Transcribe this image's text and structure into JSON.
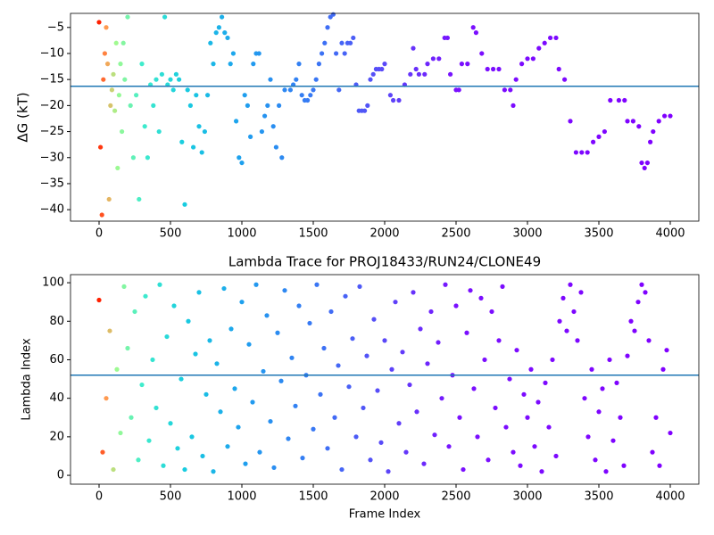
{
  "chart_data": [
    {
      "type": "scatter",
      "ylabel": "ΔG (kT)",
      "xlim": [
        -200,
        4200
      ],
      "ylim": [
        -42.2,
        -2.3
      ],
      "xticks": [
        0,
        500,
        1000,
        1500,
        2000,
        2500,
        3000,
        3500,
        4000
      ],
      "yticks": [
        {
          "value": -5,
          "label": "−5"
        },
        {
          "value": -10,
          "label": "−10"
        },
        {
          "value": -15,
          "label": "−15"
        },
        {
          "value": -20,
          "label": "−20"
        },
        {
          "value": -25,
          "label": "−25"
        },
        {
          "value": -30,
          "label": "−30"
        },
        {
          "value": -35,
          "label": "−35"
        },
        {
          "value": -40,
          "label": "−40"
        }
      ],
      "hline": -16.3,
      "hline_color": "#1f77b4",
      "colormap": [
        {
          "value": 0,
          "color": "#ff2000"
        },
        {
          "value": 50,
          "color": "#ff9a50"
        },
        {
          "value": 120,
          "color": "#a0fa90"
        },
        {
          "value": 300,
          "color": "#40eccc"
        },
        {
          "value": 600,
          "color": "#18cce0"
        },
        {
          "value": 1000,
          "color": "#1ea0ee"
        },
        {
          "value": 1500,
          "color": "#3878f4"
        },
        {
          "value": 2000,
          "color": "#5a48f8"
        },
        {
          "value": 2500,
          "color": "#7a10ff"
        },
        {
          "value": 4000,
          "color": "#8000ff"
        }
      ],
      "x": [
        0,
        10,
        20,
        30,
        40,
        50,
        60,
        70,
        80,
        90,
        100,
        110,
        120,
        130,
        140,
        150,
        160,
        170,
        180,
        200,
        220,
        240,
        260,
        280,
        300,
        320,
        340,
        360,
        380,
        400,
        420,
        440,
        460,
        480,
        500,
        520,
        540,
        560,
        580,
        600,
        620,
        640,
        660,
        680,
        700,
        720,
        740,
        760,
        780,
        800,
        820,
        840,
        860,
        880,
        900,
        920,
        940,
        960,
        980,
        1000,
        1020,
        1040,
        1060,
        1080,
        1100,
        1120,
        1140,
        1160,
        1180,
        1200,
        1220,
        1240,
        1260,
        1280,
        1300,
        1340,
        1360,
        1380,
        1400,
        1420,
        1440,
        1460,
        1480,
        1500,
        1520,
        1540,
        1560,
        1580,
        1600,
        1620,
        1640,
        1660,
        1680,
        1700,
        1720,
        1740,
        1760,
        1780,
        1800,
        1820,
        1840,
        1860,
        1880,
        1900,
        1920,
        1940,
        1960,
        1980,
        2000,
        2040,
        2060,
        2100,
        2140,
        2180,
        2200,
        2220,
        2240,
        2280,
        2300,
        2340,
        2380,
        2420,
        2440,
        2460,
        2500,
        2520,
        2540,
        2580,
        2620,
        2640,
        2680,
        2720,
        2760,
        2800,
        2840,
        2880,
        2900,
        2920,
        2960,
        3000,
        3040,
        3080,
        3120,
        3160,
        3200,
        3220,
        3260,
        3300,
        3340,
        3380,
        3420,
        3460,
        3500,
        3540,
        3580,
        3640,
        3680,
        3700,
        3740,
        3780,
        3800,
        3820,
        3840,
        3860,
        3880,
        3920,
        3960,
        4000
      ],
      "y": [
        -4,
        -28,
        -41,
        -15,
        -10,
        -5,
        -12,
        -38,
        -20,
        -17,
        -14,
        -21,
        -8,
        -32,
        -18,
        -12,
        -25,
        -8,
        -15,
        -3,
        -20,
        -30,
        -18,
        -38,
        -12,
        -24,
        -30,
        -16,
        -20,
        -15,
        -25,
        -14,
        -3,
        -16,
        -15,
        -17,
        -14,
        -15,
        -27,
        -39,
        -17,
        -20,
        -28,
        -18,
        -24,
        -29,
        -25,
        -18,
        -8,
        -12,
        -6,
        -5,
        -3,
        -6,
        -7,
        -12,
        -10,
        -23,
        -30,
        -31,
        -18,
        -20,
        -26,
        -12,
        -10,
        -10,
        -25,
        -22,
        -20,
        -15,
        -24,
        -28,
        -20,
        -30,
        -17,
        -17,
        -16,
        -15,
        -12,
        -18,
        -19,
        -19,
        -18,
        -17,
        -15,
        -12,
        -10,
        -8,
        -5,
        -3,
        -2.5,
        -10,
        -17,
        -8,
        -10,
        -8,
        -8,
        -7,
        -16,
        -21,
        -21,
        -21,
        -20,
        -15,
        -14,
        -13,
        -13,
        -13,
        -12,
        -18,
        -19,
        -19,
        -16,
        -14,
        -9,
        -13,
        -14,
        -14,
        -12,
        -11,
        -11,
        -7,
        -7,
        -14,
        -17,
        -17,
        -12,
        -12,
        -5,
        -6,
        -10,
        -13,
        -13,
        -13,
        -17,
        -17,
        -20,
        -15,
        -12,
        -11,
        -11,
        -9,
        -8,
        -7,
        -7,
        -13,
        -15,
        -23,
        -29,
        -29,
        -29,
        -27,
        -26,
        -25,
        -19,
        -19,
        -19,
        -23,
        -23,
        -24,
        -31,
        -32,
        -31,
        -27,
        -25,
        -23,
        -22,
        -22
      ]
    },
    {
      "type": "scatter",
      "title": "Lambda Trace for PROJ18433/RUN24/CLONE49",
      "xlabel": "Frame Index",
      "ylabel": "Lambda Index",
      "xlim": [
        -200,
        4200
      ],
      "ylim": [
        -4.6,
        104.2
      ],
      "xticks": [
        0,
        500,
        1000,
        1500,
        2000,
        2500,
        3000,
        3500,
        4000
      ],
      "yticks": [
        0,
        20,
        40,
        60,
        80,
        100
      ],
      "hline": 52,
      "hline_color": "#1f77b4",
      "colormap": [
        {
          "value": 0,
          "color": "#ff2000"
        },
        {
          "value": 50,
          "color": "#ff9a50"
        },
        {
          "value": 120,
          "color": "#a0fa90"
        },
        {
          "value": 300,
          "color": "#40eccc"
        },
        {
          "value": 600,
          "color": "#18cce0"
        },
        {
          "value": 1000,
          "color": "#1ea0ee"
        },
        {
          "value": 1500,
          "color": "#3878f4"
        },
        {
          "value": 2000,
          "color": "#5a48f8"
        },
        {
          "value": 2500,
          "color": "#7a10ff"
        },
        {
          "value": 4000,
          "color": "#8000ff"
        }
      ],
      "x": [
        0,
        25,
        50,
        75,
        100,
        125,
        150,
        175,
        200,
        225,
        250,
        275,
        300,
        325,
        350,
        375,
        400,
        425,
        450,
        475,
        500,
        525,
        550,
        575,
        600,
        625,
        650,
        675,
        700,
        725,
        750,
        775,
        800,
        825,
        850,
        875,
        900,
        925,
        950,
        975,
        1000,
        1025,
        1050,
        1075,
        1100,
        1125,
        1150,
        1175,
        1200,
        1225,
        1250,
        1275,
        1300,
        1325,
        1350,
        1375,
        1400,
        1425,
        1450,
        1475,
        1500,
        1525,
        1550,
        1575,
        1600,
        1625,
        1650,
        1675,
        1700,
        1725,
        1750,
        1775,
        1800,
        1825,
        1850,
        1875,
        1900,
        1925,
        1950,
        1975,
        2000,
        2025,
        2050,
        2075,
        2100,
        2125,
        2150,
        2175,
        2200,
        2225,
        2250,
        2275,
        2300,
        2325,
        2350,
        2375,
        2400,
        2425,
        2450,
        2475,
        2500,
        2525,
        2550,
        2575,
        2600,
        2625,
        2650,
        2675,
        2700,
        2725,
        2750,
        2775,
        2800,
        2825,
        2850,
        2875,
        2900,
        2925,
        2950,
        2975,
        3000,
        3025,
        3050,
        3075,
        3100,
        3125,
        3150,
        3175,
        3200,
        3225,
        3250,
        3275,
        3300,
        3325,
        3350,
        3375,
        3400,
        3425,
        3450,
        3475,
        3500,
        3525,
        3550,
        3575,
        3600,
        3625,
        3650,
        3675,
        3700,
        3725,
        3750,
        3775,
        3800,
        3825,
        3850,
        3875,
        3900,
        3925,
        3950,
        3975,
        4000
      ],
      "y": [
        91,
        12,
        40,
        75,
        3,
        55,
        22,
        98,
        66,
        30,
        85,
        8,
        47,
        93,
        18,
        60,
        35,
        99,
        5,
        72,
        27,
        88,
        14,
        50,
        3,
        80,
        20,
        63,
        95,
        10,
        42,
        70,
        2,
        58,
        33,
        97,
        15,
        76,
        45,
        25,
        90,
        6,
        68,
        38,
        99,
        12,
        54,
        83,
        28,
        4,
        74,
        49,
        96,
        19,
        61,
        36,
        88,
        9,
        52,
        79,
        24,
        99,
        42,
        66,
        14,
        85,
        30,
        57,
        3,
        93,
        46,
        71,
        20,
        98,
        35,
        62,
        8,
        81,
        44,
        17,
        70,
        2,
        55,
        90,
        27,
        64,
        12,
        47,
        95,
        33,
        76,
        6,
        58,
        85,
        21,
        69,
        40,
        99,
        15,
        52,
        88,
        30,
        3,
        74,
        96,
        45,
        20,
        92,
        60,
        8,
        85,
        35,
        70,
        98,
        25,
        50,
        12,
        65,
        5,
        42,
        30,
        55,
        15,
        38,
        2,
        48,
        25,
        60,
        10,
        80,
        92,
        75,
        99,
        85,
        70,
        95,
        40,
        20,
        55,
        8,
        33,
        45,
        2,
        60,
        18,
        48,
        30,
        5,
        62,
        80,
        75,
        90,
        99,
        95,
        70,
        12,
        30,
        5,
        55,
        65,
        22
      ]
    }
  ]
}
